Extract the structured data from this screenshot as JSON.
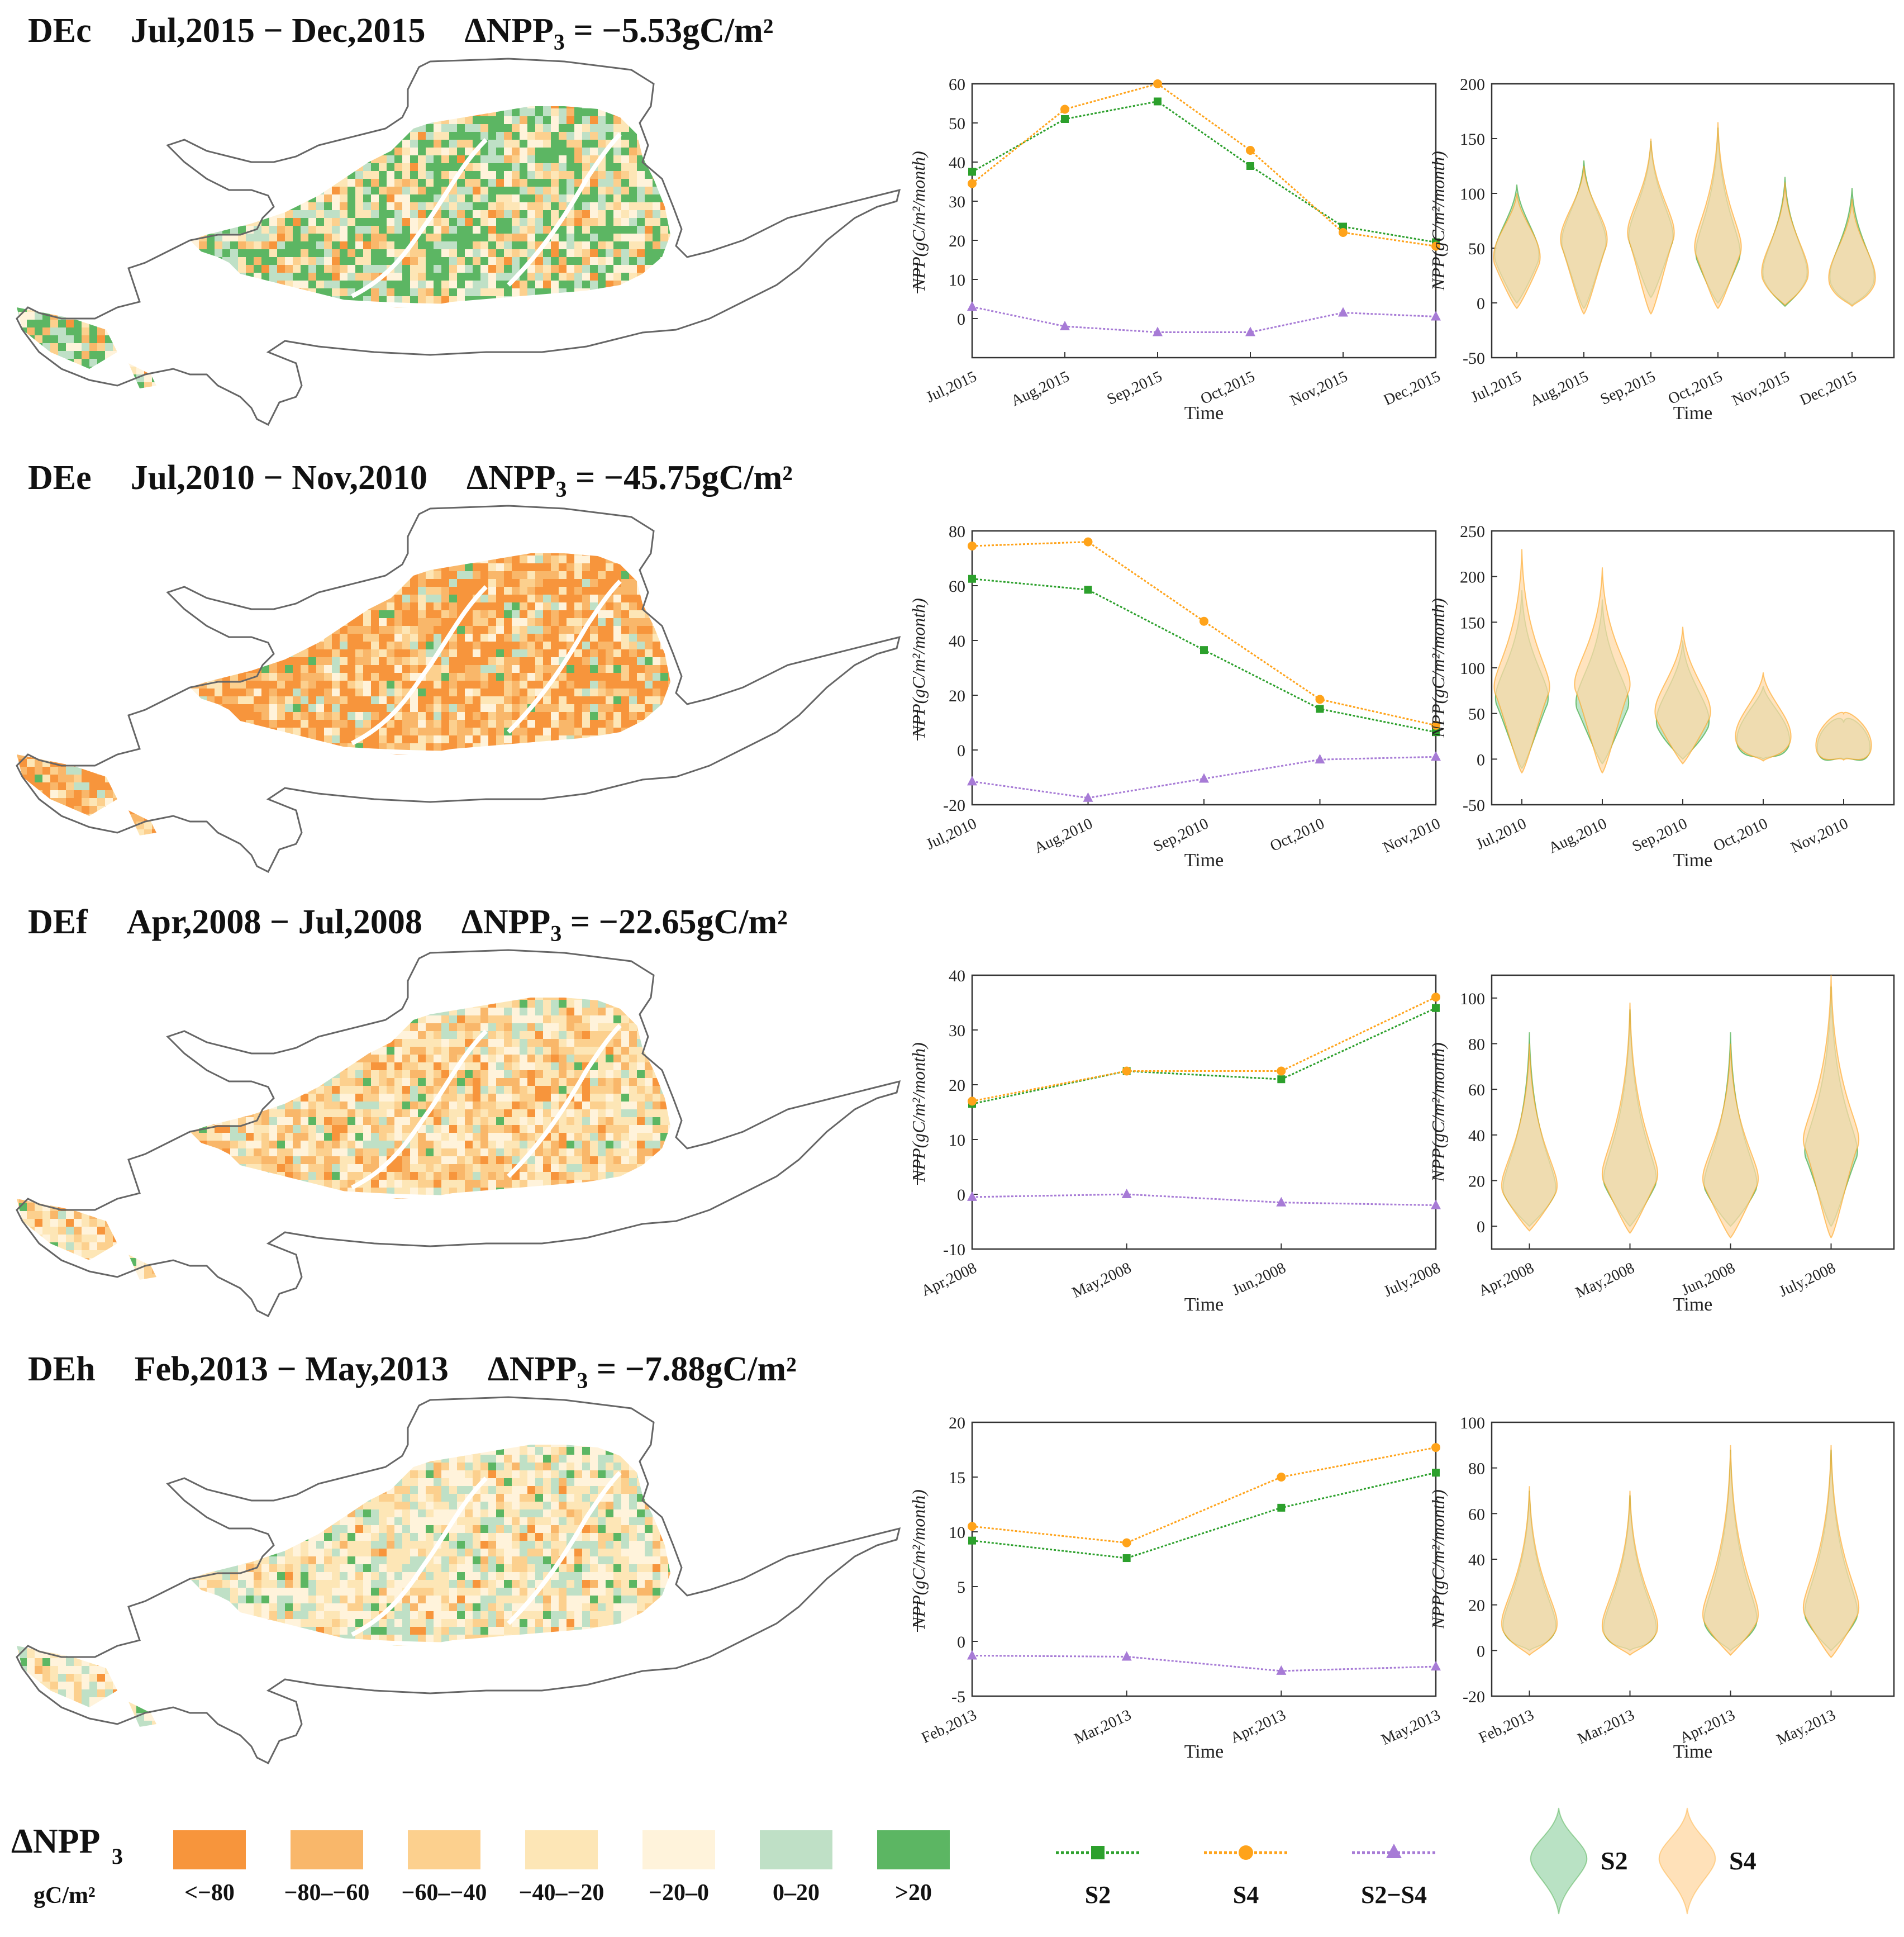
{
  "colors": {
    "s2": "#2ca02c",
    "s4": "#ffa31a",
    "diff": "#a77bd6",
    "s2_fill": "#a8dbb5",
    "s4_fill": "#ffd9a8"
  },
  "rows": [
    {
      "id": "DEc",
      "period": "Jul,2015 − Dec,2015",
      "delta_label": "ΔNPP",
      "delta_sub": "3",
      "delta_value": " = −5.53gC/m²",
      "map_theme": "green-dominant",
      "chart_data": [
        {
          "type": "line",
          "xlabel": "Time",
          "ylabel": "NPP(gC/m²/month)",
          "ylabel_overline": true,
          "categories": [
            "Jul,2015",
            "Aug,2015",
            "Sep,2015",
            "Oct,2015",
            "Nov,2015",
            "Dec,2015"
          ],
          "ylim": [
            -10,
            60
          ],
          "yticks": [
            0,
            10,
            20,
            30,
            40,
            50,
            60
          ],
          "series": [
            {
              "name": "S2",
              "values": [
                37.5,
                51,
                55.5,
                39,
                23.5,
                19.5
              ]
            },
            {
              "name": "S4",
              "values": [
                34.5,
                53.5,
                60,
                43,
                22,
                18.5
              ]
            },
            {
              "name": "S2−S4",
              "values": [
                3,
                -2,
                -3.5,
                -3.5,
                1.5,
                0.5
              ]
            }
          ]
        },
        {
          "type": "violin",
          "xlabel": "Time",
          "ylabel": "NPP(gC/m²/month)",
          "categories": [
            "Jul,2015",
            "Aug,2015",
            "Sep,2015",
            "Oct,2015",
            "Nov,2015",
            "Dec,2015"
          ],
          "ylim": [
            -50,
            200
          ],
          "yticks": [
            -50,
            0,
            50,
            100,
            150,
            200
          ],
          "series": [
            {
              "name": "S2",
              "min": [
                0,
                -5,
                5,
                0,
                -3,
                -2
              ],
              "median": [
                38,
                50,
                55,
                40,
                22,
                18
              ],
              "max": [
                108,
                130,
                148,
                160,
                115,
                105
              ]
            },
            {
              "name": "S4",
              "min": [
                -5,
                -10,
                -10,
                -5,
                -2,
                -3
              ],
              "median": [
                36,
                52,
                58,
                45,
                22,
                17
              ],
              "max": [
                100,
                125,
                150,
                165,
                110,
                95
              ]
            }
          ]
        }
      ]
    },
    {
      "id": "DEe",
      "period": "Jul,2010 − Nov,2010",
      "delta_label": "ΔNPP",
      "delta_sub": "3",
      "delta_value": " = −45.75gC/m²",
      "map_theme": "orange-dominant",
      "chart_data": [
        {
          "type": "line",
          "xlabel": "Time",
          "ylabel": "NPP(gC/m²/month)",
          "ylabel_overline": true,
          "categories": [
            "Jul,2010",
            "Aug,2010",
            "Sep,2010",
            "Oct,2010",
            "Nov,2010"
          ],
          "ylim": [
            -20,
            80
          ],
          "yticks": [
            -20,
            0,
            20,
            40,
            60,
            80
          ],
          "series": [
            {
              "name": "S2",
              "values": [
                62.5,
                58.5,
                36.5,
                15,
                6.5
              ]
            },
            {
              "name": "S4",
              "values": [
                74.5,
                76,
                47,
                18.5,
                9
              ]
            },
            {
              "name": "S2−S4",
              "values": [
                -11.5,
                -17.5,
                -10.5,
                -3.5,
                -2.5
              ]
            }
          ]
        },
        {
          "type": "violin",
          "xlabel": "Time",
          "ylabel": "NPP(gC/m²/month)",
          "categories": [
            "Jul,2010",
            "Aug,2010",
            "Sep,2010",
            "Oct,2010",
            "Nov,2010"
          ],
          "ylim": [
            -50,
            250
          ],
          "yticks": [
            -50,
            0,
            50,
            100,
            150,
            200,
            250
          ],
          "series": [
            {
              "name": "S2",
              "min": [
                -10,
                -5,
                0,
                0,
                0
              ],
              "median": [
                60,
                55,
                35,
                14,
                6
              ],
              "max": [
                185,
                175,
                130,
                80,
                40
              ]
            },
            {
              "name": "S4",
              "min": [
                -15,
                -15,
                -5,
                -2,
                -1
              ],
              "median": [
                72,
                75,
                45,
                18,
                8
              ],
              "max": [
                230,
                210,
                145,
                95,
                50
              ]
            }
          ]
        }
      ]
    },
    {
      "id": "DEf",
      "period": "Apr,2008 − Jul,2008",
      "delta_label": "ΔNPP",
      "delta_sub": "3",
      "delta_value": " = −22.65gC/m²",
      "map_theme": "light-orange",
      "chart_data": [
        {
          "type": "line",
          "xlabel": "Time",
          "ylabel": "NPP(gC/m²/month)",
          "ylabel_overline": true,
          "categories": [
            "Apr,2008",
            "May,2008",
            "Jun,2008",
            "July,2008"
          ],
          "ylim": [
            -10,
            40
          ],
          "yticks": [
            -10,
            0,
            10,
            20,
            30,
            40
          ],
          "series": [
            {
              "name": "S2",
              "values": [
                16.5,
                22.5,
                21,
                34
              ]
            },
            {
              "name": "S4",
              "values": [
                17,
                22.5,
                22.5,
                36
              ]
            },
            {
              "name": "S2−S4",
              "values": [
                -0.5,
                0,
                -1.5,
                -2
              ]
            }
          ]
        },
        {
          "type": "violin",
          "xlabel": "Time",
          "ylabel": "NPP(gC/m²/month)",
          "categories": [
            "Apr,2008",
            "May,2008",
            "Jun,2008",
            "July,2008"
          ],
          "ylim": [
            -10,
            110
          ],
          "yticks": [
            0,
            20,
            40,
            60,
            80,
            100
          ],
          "series": [
            {
              "name": "S2",
              "min": [
                0,
                0,
                0,
                0
              ],
              "median": [
                14,
                18,
                16,
                30
              ],
              "max": [
                85,
                95,
                85,
                105
              ]
            },
            {
              "name": "S4",
              "min": [
                -2,
                -3,
                -5,
                -5
              ],
              "median": [
                15,
                20,
                18,
                35
              ],
              "max": [
                80,
                98,
                80,
                110
              ]
            }
          ]
        }
      ]
    },
    {
      "id": "DEh",
      "period": "Feb,2013 − May,2013",
      "delta_label": "ΔNPP",
      "delta_sub": "3",
      "delta_value": " = −7.88gC/m²",
      "map_theme": "light-mixed",
      "chart_data": [
        {
          "type": "line",
          "xlabel": "Time",
          "ylabel": "NPP(gC/m²/month)",
          "ylabel_overline": true,
          "categories": [
            "Feb,2013",
            "Mar,2013",
            "Apr,2013",
            "May,2013"
          ],
          "ylim": [
            -5,
            20
          ],
          "yticks": [
            -5,
            0,
            5,
            10,
            15,
            20
          ],
          "series": [
            {
              "name": "S2",
              "values": [
                9.2,
                7.6,
                12.2,
                15.4
              ]
            },
            {
              "name": "S4",
              "values": [
                10.5,
                9,
                15,
                17.7
              ]
            },
            {
              "name": "S2−S4",
              "values": [
                -1.3,
                -1.4,
                -2.7,
                -2.3
              ]
            }
          ]
        },
        {
          "type": "violin",
          "xlabel": "Time",
          "ylabel": "NPP(gC/m²/month)",
          "categories": [
            "Feb,2013",
            "Mar,2013",
            "Apr,2013",
            "May,2013"
          ],
          "ylim": [
            -20,
            100
          ],
          "yticks": [
            -20,
            0,
            20,
            40,
            60,
            80,
            100
          ],
          "series": [
            {
              "name": "S2",
              "min": [
                0,
                0,
                0,
                0
              ],
              "median": [
                8,
                7,
                11,
                14
              ],
              "max": [
                70,
                68,
                88,
                88
              ]
            },
            {
              "name": "S4",
              "min": [
                -2,
                -2,
                -2,
                -3
              ],
              "median": [
                9,
                8,
                13,
                16
              ],
              "max": [
                72,
                70,
                90,
                90
              ]
            }
          ]
        }
      ]
    }
  ],
  "legend": {
    "title": "ΔNPP",
    "title_sub": "3",
    "unit": "gC/m²",
    "classes": [
      {
        "label": "<−80",
        "color": "#f7953c"
      },
      {
        "label": "−80–−60",
        "color": "#f9b76a"
      },
      {
        "label": "−60–−40",
        "color": "#fcd08e"
      },
      {
        "label": "−40–−20",
        "color": "#fde6b6"
      },
      {
        "label": "−20–0",
        "color": "#fff3db"
      },
      {
        "label": "0–20",
        "color": "#bfe0c6"
      },
      {
        "label": ">20",
        "color": "#5cb663"
      }
    ],
    "lines": [
      {
        "label": "S2",
        "marker": "square",
        "color": "#2ca02c"
      },
      {
        "label": "S4",
        "marker": "circle",
        "color": "#ffa31a"
      },
      {
        "label": "S2−S4",
        "marker": "triangle",
        "color": "#a77bd6"
      }
    ],
    "violins": [
      {
        "label": "S2",
        "color": "#2ca02c"
      },
      {
        "label": "S4",
        "color": "#ffa31a"
      }
    ]
  }
}
